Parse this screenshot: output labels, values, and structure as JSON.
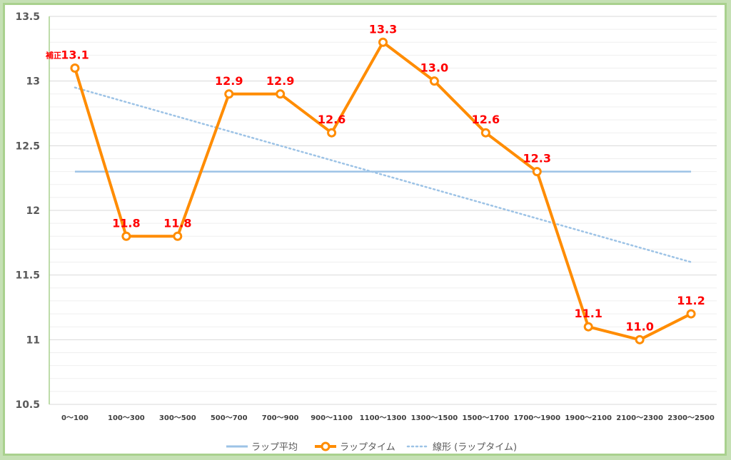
{
  "chart_data": {
    "type": "line",
    "title": "",
    "xlabel": "",
    "ylabel": "",
    "ylim": [
      10.5,
      13.5
    ],
    "yticks": [
      "10.5",
      "11",
      "11.5",
      "12",
      "12.5",
      "13",
      "13.5"
    ],
    "ytick_values": [
      10.5,
      11,
      11.5,
      12,
      12.5,
      13,
      13.5
    ],
    "categories": [
      "0～100",
      "100～300",
      "300～500",
      "500～700",
      "700～900",
      "900～1100",
      "1100～1300",
      "1300～1500",
      "1500～1700",
      "1700～1900",
      "1900～2100",
      "2100～2300",
      "2300～2500"
    ],
    "series": [
      {
        "name": "ラップタイム",
        "values": [
          13.1,
          11.8,
          11.8,
          12.9,
          12.9,
          12.6,
          13.3,
          13.0,
          12.6,
          12.3,
          11.1,
          11.0,
          11.2
        ],
        "labels": [
          "13.1",
          "11.8",
          "11.8",
          "12.9",
          "12.9",
          "12.6",
          "13.3",
          "13.0",
          "12.6",
          "12.3",
          "11.1",
          "11.0",
          "11.2"
        ],
        "color": "#ff8c00"
      },
      {
        "name": "ラップ平均",
        "values": [
          12.3,
          12.3,
          12.3,
          12.3,
          12.3,
          12.3,
          12.3,
          12.3,
          12.3,
          12.3,
          12.3,
          12.3,
          12.3
        ],
        "color": "#9dc3e6"
      },
      {
        "name": "線形 (ラップタイム)",
        "trendline": true,
        "start": 12.95,
        "end": 11.6,
        "color": "#9dc3e6"
      }
    ],
    "annotations": [
      {
        "text": "補正",
        "point_index": 0
      }
    ],
    "label_color": "#ff0000",
    "grid": true,
    "legend_position": "bottom"
  }
}
